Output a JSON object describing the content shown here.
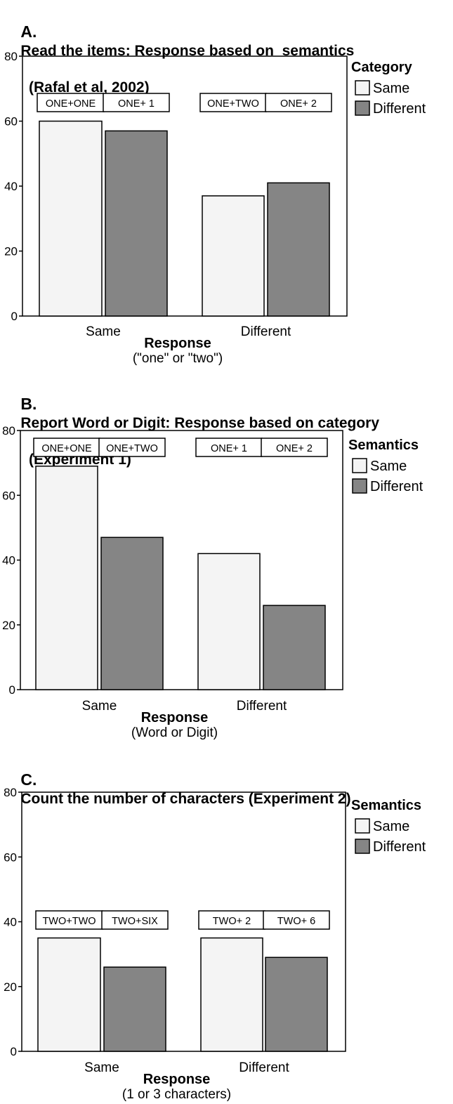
{
  "panels": [
    {
      "letter": "A.",
      "title_line1": "Read the items: Response based on  semantics",
      "title_line2": "(Rafal et al, 2002)",
      "chart_data": {
        "type": "bar",
        "categories": [
          "Same",
          "Different"
        ],
        "series": [
          {
            "name": "Same",
            "values": [
              60,
              37
            ]
          },
          {
            "name": "Different",
            "values": [
              57,
              41
            ]
          }
        ],
        "bar_labels": [
          [
            "ONE+ONE",
            "ONE+ 1"
          ],
          [
            "ONE+TWO",
            "ONE+ 2"
          ]
        ],
        "xlabel": "Response",
        "xlabel_sub": "(\"one\" or \"two\")",
        "ylabel": "",
        "ylim": [
          0,
          80
        ],
        "yticks": [
          0,
          20,
          40,
          60,
          80
        ],
        "legend_title": "Category",
        "legend_position": "right",
        "grid": false
      }
    },
    {
      "letter": "B.",
      "title_line1": "Report Word or Digit: Response based on category",
      "title_line2": "(Experiment 1)",
      "chart_data": {
        "type": "bar",
        "categories": [
          "Same",
          "Different"
        ],
        "series": [
          {
            "name": "Same",
            "values": [
              69,
              42
            ]
          },
          {
            "name": "Different",
            "values": [
              47,
              26
            ]
          }
        ],
        "bar_labels": [
          [
            "ONE+ONE",
            "ONE+TWO"
          ],
          [
            "ONE+ 1",
            "ONE+ 2"
          ]
        ],
        "xlabel": "Response",
        "xlabel_sub": "(Word or Digit)",
        "ylabel": "",
        "ylim": [
          0,
          80
        ],
        "yticks": [
          0,
          20,
          40,
          60,
          80
        ],
        "legend_title": "Semantics",
        "legend_position": "right",
        "grid": false
      }
    },
    {
      "letter": "C.",
      "title_line1": "Count the number of characters (Experiment 2)",
      "title_line2": "",
      "chart_data": {
        "type": "bar",
        "categories": [
          "Same",
          "Different"
        ],
        "series": [
          {
            "name": "Same",
            "values": [
              35,
              35
            ]
          },
          {
            "name": "Different",
            "values": [
              26,
              29
            ]
          }
        ],
        "bar_labels": [
          [
            "TWO+TWO",
            "TWO+SIX"
          ],
          [
            "TWO+ 2",
            "TWO+ 6"
          ]
        ],
        "xlabel": "Response",
        "xlabel_sub": "(1 or 3 characters)",
        "ylabel": "",
        "ylim": [
          0,
          80
        ],
        "yticks": [
          0,
          20,
          40,
          60,
          80
        ],
        "legend_title": "Semantics",
        "legend_position": "right",
        "grid": false
      }
    }
  ],
  "colors": {
    "same_fill": "#f4f4f4",
    "different_fill": "#858585",
    "stroke": "#000000"
  }
}
